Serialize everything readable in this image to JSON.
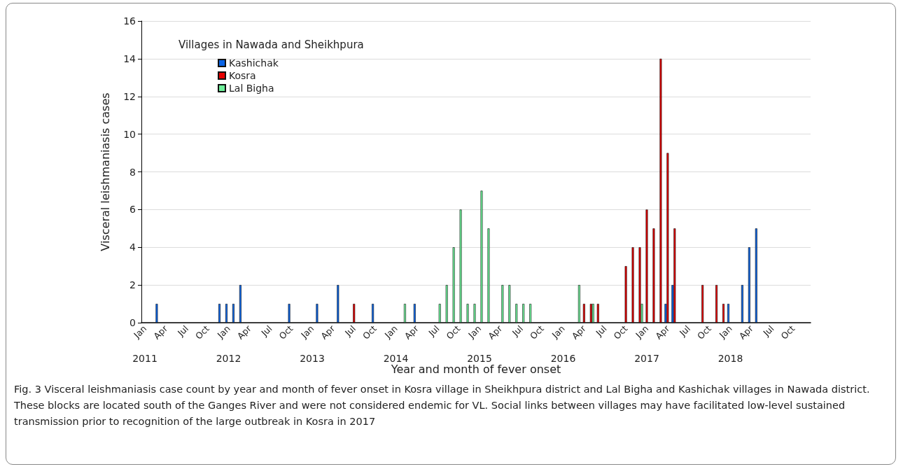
{
  "chart_data": {
    "type": "bar",
    "xlabel": "Year and month of fever onset",
    "ylabel": "Visceral leishmaniasis cases",
    "legend_title": "Villages in Nawada and Sheikhpura",
    "legend": "top left",
    "grid": "y",
    "ylim": [
      0,
      16
    ],
    "yticks": [
      0,
      2,
      4,
      6,
      8,
      10,
      12,
      14,
      16
    ],
    "categories": [
      "Jan",
      null,
      null,
      "Apr",
      null,
      null,
      "Jul",
      null,
      null,
      "Oct",
      null,
      null,
      "Jan",
      null,
      null,
      "Apr",
      null,
      null,
      "Jul",
      null,
      null,
      "Oct",
      null,
      null,
      "Jan",
      null,
      null,
      "Apr",
      null,
      null,
      "Jul",
      null,
      null,
      "Oct",
      null,
      null,
      "Jan",
      null,
      null,
      "Apr",
      null,
      null,
      "Jul",
      null,
      null,
      "Oct",
      null,
      null,
      "Jan",
      null,
      null,
      "Apr",
      null,
      null,
      "Jul",
      null,
      null,
      "Oct",
      null,
      null,
      "Jan",
      null,
      null,
      "Apr",
      null,
      null,
      "Jul",
      null,
      null,
      "Oct",
      null,
      null,
      "Jan",
      null,
      null,
      "Apr",
      null,
      null,
      "Jul",
      null,
      null,
      "Oct",
      null,
      null,
      "Jan",
      null,
      null,
      "Apr",
      null,
      null,
      "Jul",
      null,
      null,
      "Oct",
      null,
      null
    ],
    "series": [
      {
        "name": "Kashichak",
        "color": "#0a64e6",
        "values": [
          null,
          null,
          1,
          null,
          null,
          null,
          null,
          null,
          null,
          null,
          null,
          1,
          1,
          1,
          2,
          null,
          null,
          null,
          null,
          null,
          null,
          1,
          null,
          null,
          null,
          1,
          null,
          null,
          2,
          null,
          null,
          null,
          null,
          1,
          null,
          null,
          null,
          null,
          null,
          1,
          null,
          null,
          null,
          null,
          null,
          null,
          null,
          null,
          null,
          null,
          null,
          null,
          null,
          null,
          null,
          null,
          null,
          null,
          null,
          null,
          null,
          null,
          null,
          null,
          null,
          null,
          null,
          null,
          null,
          null,
          null,
          null,
          null,
          null,
          null,
          1,
          2,
          null,
          null,
          null,
          null,
          null,
          null,
          null,
          1,
          null,
          2,
          4,
          5,
          null,
          null,
          null,
          null,
          null,
          null,
          null
        ]
      },
      {
        "name": "Kosra",
        "color": "#e60000",
        "values": [
          null,
          null,
          null,
          null,
          null,
          null,
          null,
          null,
          null,
          null,
          null,
          null,
          null,
          null,
          null,
          null,
          null,
          null,
          null,
          null,
          null,
          null,
          null,
          null,
          null,
          null,
          null,
          null,
          null,
          null,
          1,
          null,
          null,
          null,
          null,
          null,
          null,
          null,
          null,
          null,
          null,
          null,
          null,
          null,
          null,
          null,
          null,
          null,
          null,
          null,
          null,
          null,
          null,
          null,
          null,
          null,
          null,
          null,
          null,
          null,
          null,
          null,
          null,
          1,
          1,
          1,
          null,
          null,
          null,
          3,
          4,
          4,
          6,
          5,
          14,
          9,
          5,
          null,
          null,
          null,
          2,
          null,
          2,
          1,
          null,
          null,
          null,
          null,
          null,
          null,
          null,
          null,
          null,
          null,
          null,
          null
        ]
      },
      {
        "name": "Lal Bigha",
        "color": "#6ef09a",
        "values": [
          null,
          null,
          null,
          null,
          null,
          null,
          null,
          null,
          null,
          null,
          null,
          null,
          null,
          null,
          null,
          null,
          null,
          null,
          null,
          null,
          null,
          null,
          null,
          null,
          null,
          null,
          null,
          null,
          null,
          null,
          null,
          null,
          null,
          null,
          null,
          null,
          null,
          1,
          null,
          null,
          null,
          null,
          1,
          2,
          4,
          6,
          1,
          1,
          7,
          5,
          null,
          2,
          2,
          1,
          1,
          1,
          null,
          null,
          null,
          null,
          null,
          null,
          2,
          null,
          1,
          null,
          null,
          null,
          null,
          null,
          null,
          1,
          null,
          null,
          null,
          null,
          null,
          null,
          null,
          null,
          null,
          null,
          null,
          null,
          null,
          null,
          null,
          null,
          null,
          null,
          null,
          null,
          null,
          null,
          null,
          null
        ]
      }
    ],
    "annotations": [
      "2011",
      "2012",
      "2013",
      "2014",
      "2015",
      "2016",
      "2017",
      "2018",
      "Fig. 3 Visceral leishmaniasis case count by year and month of fever onset in Kosra village in Sheikhpura district and Lal Bigha and Kashichak villages in Nawada district. These blocks are located south of the Ganges River and were not considered endemic for VL. Social links between villages may have facilitated low-level sustained transmission prior to recognition of the large outbreak in Kosra in 2017"
    ]
  }
}
